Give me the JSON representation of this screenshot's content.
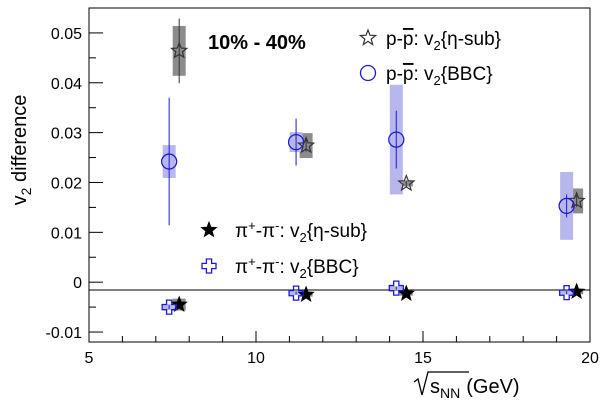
{
  "chart_data": {
    "type": "scatter",
    "annotation": "10% - 40%",
    "xlabel": {
      "root": "s",
      "sub": "NN",
      "unit": "(GeV)"
    },
    "ylabel": {
      "pre": "v",
      "sub": "2",
      "post": " difference"
    },
    "xlim": [
      5,
      20
    ],
    "ylim": [
      -0.012,
      0.055
    ],
    "x_ticks": [
      "5",
      "10",
      "15",
      "20"
    ],
    "y_ticks": [
      "-0.01",
      "0",
      "0.01",
      "0.02",
      "0.03",
      "0.04",
      "0.05"
    ],
    "zero_line": true,
    "grid": false,
    "legend_upper": "top-right",
    "legend_lower": "center-left",
    "series": [
      {
        "key": "pp_eta",
        "legend": {
          "a": "p-",
          "b": "p",
          "c": ": v",
          "d": "2",
          "e": "{η-sub}"
        },
        "marker": "open-star",
        "color": "#333333",
        "sys_color": "#8c8c8c",
        "points": [
          {
            "x": 7.7,
            "y": 0.0464,
            "stat": 0.0065,
            "sys": 0.005
          },
          {
            "x": 11.5,
            "y": 0.0274,
            "stat": 0.0012,
            "sys": 0.0025
          },
          {
            "x": 14.5,
            "y": 0.0198,
            "stat": 0.0006,
            "sys": 0.0006
          },
          {
            "x": 19.6,
            "y": 0.0163,
            "stat": 0.0012,
            "sys": 0.0025
          }
        ]
      },
      {
        "key": "pp_bbc",
        "legend": {
          "a": "p-",
          "b": "p",
          "c": ": v",
          "d": "2",
          "e": "{BBC}"
        },
        "marker": "open-circle",
        "color": "#1a1ad1",
        "sys_color": "#b7b7ee",
        "points": [
          {
            "x": 7.4,
            "y": 0.0242,
            "stat": 0.0128,
            "sys": 0.0033
          },
          {
            "x": 11.2,
            "y": 0.0281,
            "stat": 0.0047,
            "sys": 0.002
          },
          {
            "x": 14.2,
            "y": 0.0286,
            "stat": 0.0058,
            "sys": 0.011
          },
          {
            "x": 19.3,
            "y": 0.0153,
            "stat": 0.0023,
            "sys": 0.0068
          }
        ]
      },
      {
        "key": "pipi_eta",
        "legend": {
          "a": "π",
          "b": "+",
          "c": "-π",
          "d": "-",
          "e": ": v",
          "f": "2",
          "g": "{η-sub}"
        },
        "marker": "filled-star",
        "color": "#000000",
        "sys_color": "#8c8c8c",
        "points": [
          {
            "x": 7.7,
            "y": -0.0045,
            "stat": 0.0003,
            "sys": 0.0012
          },
          {
            "x": 11.5,
            "y": -0.0025,
            "stat": 0.0002,
            "sys": 0.0004
          },
          {
            "x": 14.5,
            "y": -0.0023,
            "stat": 0.0002,
            "sys": 0.0004
          },
          {
            "x": 19.6,
            "y": -0.0019,
            "stat": 0.0002,
            "sys": 0.0005
          }
        ]
      },
      {
        "key": "pipi_bbc",
        "legend": {
          "a": "π",
          "b": "+",
          "c": "-π",
          "d": "-",
          "e": ": v",
          "f": "2",
          "g": "{BBC}"
        },
        "marker": "open-cross",
        "color": "#1a1ad1",
        "sys_color": "#b7b7ee",
        "points": [
          {
            "x": 7.4,
            "y": -0.005,
            "stat": 0.0004,
            "sys": 0.0006
          },
          {
            "x": 11.2,
            "y": -0.0022,
            "stat": 0.0003,
            "sys": 0.0004
          },
          {
            "x": 14.2,
            "y": -0.0012,
            "stat": 0.0003,
            "sys": 0.0004
          },
          {
            "x": 19.3,
            "y": -0.0021,
            "stat": 0.0003,
            "sys": 0.0004
          }
        ]
      }
    ]
  }
}
